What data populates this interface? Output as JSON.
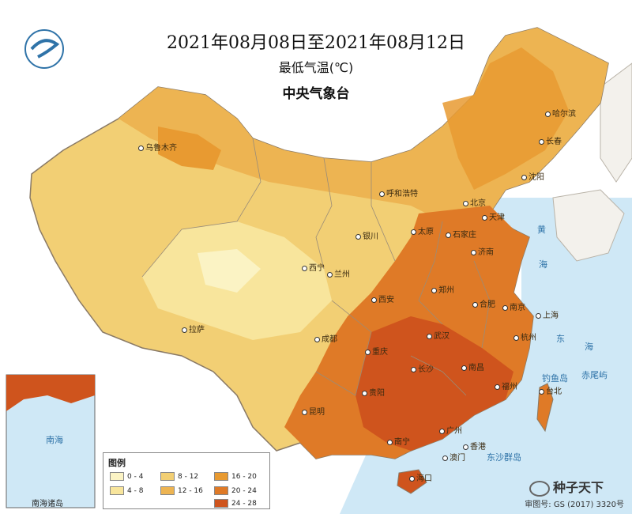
{
  "header": {
    "title": "2021年08月08日至2021年08月12日",
    "subtitle": "最低气温(℃)",
    "agency": "中央气象台"
  },
  "logo": {
    "name": "cma-logo"
  },
  "cities": [
    {
      "name": "乌鲁木齐"
    },
    {
      "name": "哈尔滨"
    },
    {
      "name": "长春"
    },
    {
      "name": "沈阳"
    },
    {
      "name": "呼和浩特"
    },
    {
      "name": "北京"
    },
    {
      "name": "天津"
    },
    {
      "name": "银川"
    },
    {
      "name": "太原"
    },
    {
      "name": "石家庄"
    },
    {
      "name": "济南"
    },
    {
      "name": "西宁"
    },
    {
      "name": "兰州"
    },
    {
      "name": "郑州"
    },
    {
      "name": "西安"
    },
    {
      "name": "合肥"
    },
    {
      "name": "南京"
    },
    {
      "name": "上海"
    },
    {
      "name": "杭州"
    },
    {
      "name": "拉萨"
    },
    {
      "name": "成都"
    },
    {
      "name": "重庆"
    },
    {
      "name": "武汉"
    },
    {
      "name": "长沙"
    },
    {
      "name": "南昌"
    },
    {
      "name": "福州"
    },
    {
      "name": "台北"
    },
    {
      "name": "贵阳"
    },
    {
      "name": "昆明"
    },
    {
      "name": "南宁"
    },
    {
      "name": "广州"
    },
    {
      "name": "香港"
    },
    {
      "name": "澳门"
    },
    {
      "name": "海口"
    }
  ],
  "geo_labels": [
    {
      "text": "黄"
    },
    {
      "text": "海"
    },
    {
      "text": "东"
    },
    {
      "text": "海"
    },
    {
      "text": "钓鱼岛"
    },
    {
      "text": "赤尾屿"
    },
    {
      "text": "东沙群岛"
    },
    {
      "text": "南海"
    }
  ],
  "legend": {
    "title": "图例",
    "items": [
      {
        "range": "0 - 4",
        "color": "#fbf3c4"
      },
      {
        "range": "4 - 8",
        "color": "#f8e59c"
      },
      {
        "range": "8 - 12",
        "color": "#f2cf74"
      },
      {
        "range": "12 - 16",
        "color": "#edb452"
      },
      {
        "range": "16 - 20",
        "color": "#e89a31"
      },
      {
        "range": "20 - 24",
        "color": "#df7a27"
      },
      {
        "range": "24 - 28",
        "color": "#cf541d"
      }
    ]
  },
  "inset": {
    "label": "南海诸岛"
  },
  "review_number": "审图号: GS (2017) 3320号",
  "watermark": "种子天下",
  "colors": {
    "sea": "#cfe8f6",
    "land_outside": "#f3f1ec",
    "border": "#8a7a66"
  }
}
